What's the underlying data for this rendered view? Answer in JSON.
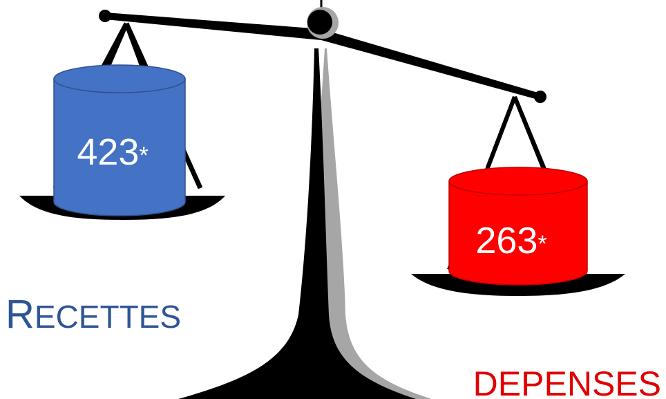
{
  "left": {
    "value": "423",
    "suffix": "*",
    "label_first": "R",
    "label_rest": "ECETTES",
    "drum_color": "#4472c4",
    "label_color": "#2f5597"
  },
  "right": {
    "value": "263",
    "suffix": "*",
    "label": "DEPENSES",
    "drum_color": "#ff0000",
    "label_color": "#e00000"
  }
}
